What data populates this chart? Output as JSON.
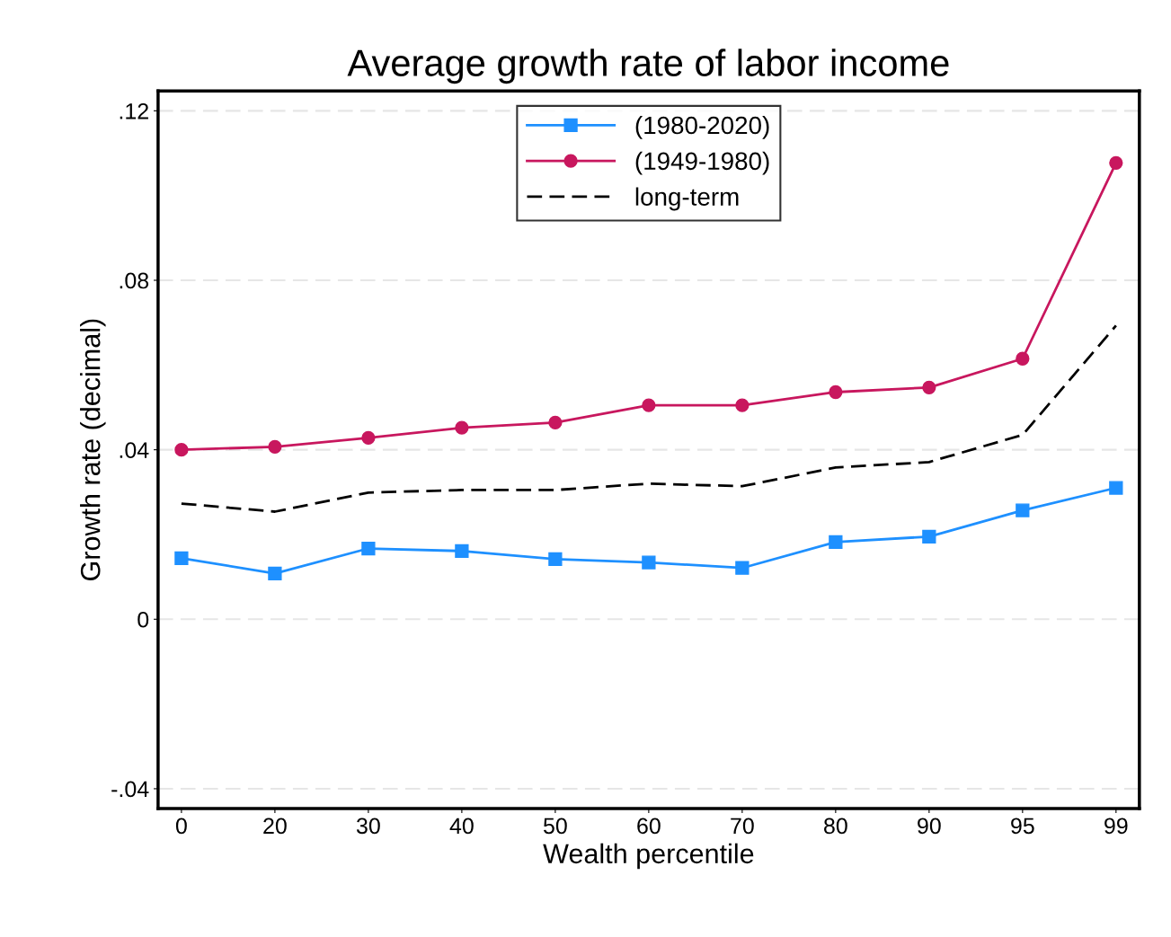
{
  "chart_data": {
    "type": "line",
    "title": "Average growth rate of labor income",
    "xlabel": "Wealth percentile",
    "ylabel": "Growth rate (decimal)",
    "categories": [
      "0",
      "20",
      "30",
      "40",
      "50",
      "60",
      "70",
      "80",
      "90",
      "95",
      "99"
    ],
    "series": [
      {
        "name": "(1980-2020)",
        "color": "#1e90ff",
        "marker": "square",
        "line_style": "solid",
        "values": [
          0.0144,
          0.0108,
          0.0167,
          0.0161,
          0.0142,
          0.0134,
          0.0121,
          0.0182,
          0.0195,
          0.0257,
          0.031
        ]
      },
      {
        "name": "(1949-1980)",
        "color": "#c8175e",
        "marker": "circle",
        "line_style": "solid",
        "values": [
          0.04,
          0.0407,
          0.0428,
          0.0452,
          0.0464,
          0.0505,
          0.0505,
          0.0536,
          0.0547,
          0.0615,
          0.1077
        ]
      },
      {
        "name": "long-term",
        "color": "#000000",
        "marker": "none",
        "line_style": "dashed",
        "values": [
          0.0273,
          0.0254,
          0.0299,
          0.0305,
          0.0305,
          0.032,
          0.0314,
          0.0358,
          0.0371,
          0.0435,
          0.0693
        ]
      }
    ],
    "ylim": [
      -0.0447,
      0.1247
    ],
    "yticks": [
      {
        "value": -0.04,
        "label": "-.04"
      },
      0,
      {
        "value": 0.04,
        "label": ".04"
      },
      {
        "value": 0.08,
        "label": ".08"
      },
      {
        "value": 0.12,
        "label": ".12"
      }
    ],
    "grid": "y",
    "legend": "top"
  }
}
